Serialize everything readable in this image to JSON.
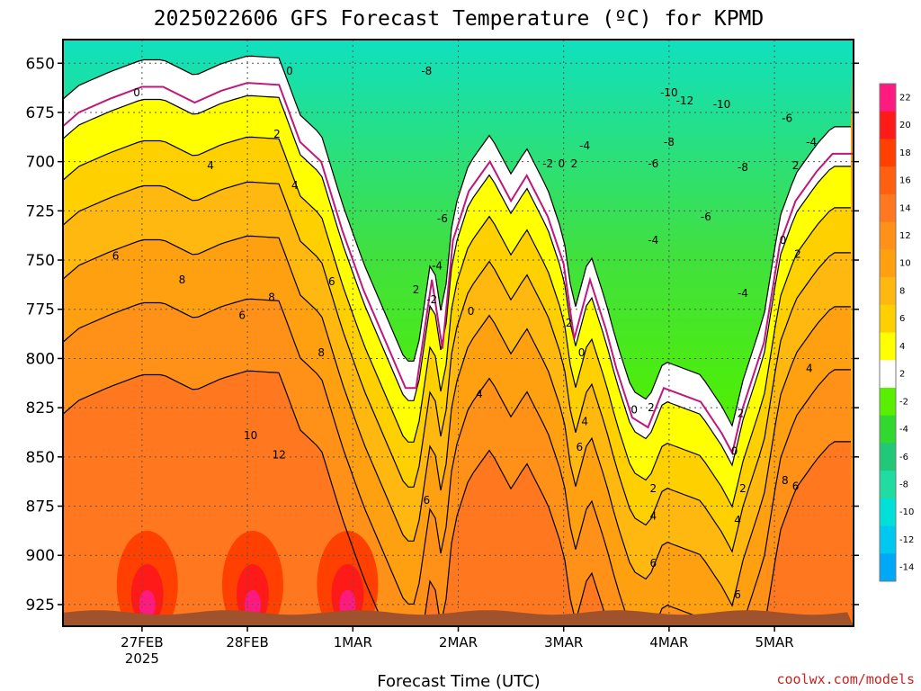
{
  "chart_data": {
    "type": "heatmap",
    "title": "2025022606 GFS Forecast Temperature (ºC) for KPMD",
    "xlabel": "Forecast Time (UTC)",
    "ylabel": "",
    "credit": "coolwx.com/models",
    "y_ticks": [
      "650",
      "675",
      "700",
      "725",
      "750",
      "775",
      "800",
      "825",
      "850",
      "875",
      "900",
      "925"
    ],
    "y_values": [
      650,
      675,
      700,
      725,
      750,
      775,
      800,
      825,
      850,
      875,
      900,
      925
    ],
    "ylim": [
      638,
      936
    ],
    "x_ticks": [
      {
        "label": "27FEB",
        "sub": "2025",
        "day": 1
      },
      {
        "label": "28FEB",
        "sub": "",
        "day": 2
      },
      {
        "label": "1MAR",
        "sub": "",
        "day": 3
      },
      {
        "label": "2MAR",
        "sub": "",
        "day": 4
      },
      {
        "label": "3MAR",
        "sub": "",
        "day": 5
      },
      {
        "label": "4MAR",
        "sub": "",
        "day": 6
      },
      {
        "label": "5MAR",
        "sub": "",
        "day": 7
      }
    ],
    "xlim": [
      0.25,
      7.75
    ],
    "colorbar": {
      "labels": [
        "22",
        "20",
        "18",
        "16",
        "14",
        "12",
        "10",
        "8",
        "6",
        "4",
        "2",
        "-2",
        "-4",
        "-6",
        "-8",
        "-10",
        "-12",
        "-14"
      ],
      "colors": [
        "#ff1a80",
        "#ff1a1a",
        "#ff4000",
        "#ff6010",
        "#ff7820",
        "#ff9018",
        "#ffa010",
        "#ffb810",
        "#ffd000",
        "#ffff00",
        "#ffffff",
        "#58f000",
        "#30d830",
        "#20c878",
        "#20dca0",
        "#00e0d8",
        "#00c8f0",
        "#00a8f8"
      ]
    },
    "freezing_line": [
      [
        0.25,
        682
      ],
      [
        0.4,
        675
      ],
      [
        0.7,
        668
      ],
      [
        1.0,
        662
      ],
      [
        1.2,
        662
      ],
      [
        1.5,
        670
      ],
      [
        1.75,
        664
      ],
      [
        2.0,
        660
      ],
      [
        2.3,
        661
      ],
      [
        2.5,
        690
      ],
      [
        2.7,
        700
      ],
      [
        2.9,
        735
      ],
      [
        3.1,
        765
      ],
      [
        3.3,
        790
      ],
      [
        3.5,
        815
      ],
      [
        3.6,
        815
      ],
      [
        3.75,
        760
      ],
      [
        3.85,
        795
      ],
      [
        3.95,
        740
      ],
      [
        4.1,
        715
      ],
      [
        4.3,
        700
      ],
      [
        4.5,
        720
      ],
      [
        4.65,
        707
      ],
      [
        4.85,
        728
      ],
      [
        5.0,
        752
      ],
      [
        5.1,
        790
      ],
      [
        5.25,
        760
      ],
      [
        5.4,
        785
      ],
      [
        5.5,
        805
      ],
      [
        5.65,
        830
      ],
      [
        5.8,
        835
      ],
      [
        5.95,
        815
      ],
      [
        6.1,
        818
      ],
      [
        6.3,
        822
      ],
      [
        6.5,
        838
      ],
      [
        6.6,
        848
      ],
      [
        6.7,
        825
      ],
      [
        6.9,
        792
      ],
      [
        7.05,
        742
      ],
      [
        7.2,
        720
      ],
      [
        7.4,
        705
      ],
      [
        7.55,
        696
      ],
      [
        7.75,
        696
      ]
    ],
    "contour_labels": [
      {
        "t": "0",
        "x": 0.95,
        "y": 665
      },
      {
        "t": "0",
        "x": 2.4,
        "y": 654
      },
      {
        "t": "0",
        "x": 4.12,
        "y": 776
      },
      {
        "t": "0",
        "x": 4.98,
        "y": 701
      },
      {
        "t": "0",
        "x": 5.17,
        "y": 797
      },
      {
        "t": "0",
        "x": 5.67,
        "y": 826
      },
      {
        "t": "0",
        "x": 6.62,
        "y": 847
      },
      {
        "t": "0",
        "x": 7.08,
        "y": 740
      },
      {
        "t": "2",
        "x": 2.28,
        "y": 686
      },
      {
        "t": "2",
        "x": 3.6,
        "y": 765
      },
      {
        "t": "2",
        "x": 5.1,
        "y": 701
      },
      {
        "t": "2",
        "x": 5.05,
        "y": 782
      },
      {
        "t": "2",
        "x": 5.83,
        "y": 825
      },
      {
        "t": "2",
        "x": 6.68,
        "y": 828
      },
      {
        "t": "2",
        "x": 5.85,
        "y": 866
      },
      {
        "t": "2",
        "x": 6.7,
        "y": 866
      },
      {
        "t": "2",
        "x": 7.2,
        "y": 702
      },
      {
        "t": "2",
        "x": 7.22,
        "y": 747
      },
      {
        "t": "4",
        "x": 1.65,
        "y": 702
      },
      {
        "t": "4",
        "x": 2.45,
        "y": 712
      },
      {
        "t": "4",
        "x": 4.2,
        "y": 818
      },
      {
        "t": "4",
        "x": 5.2,
        "y": 832
      },
      {
        "t": "4",
        "x": 5.85,
        "y": 880
      },
      {
        "t": "4",
        "x": 6.65,
        "y": 882
      },
      {
        "t": "4",
        "x": 7.33,
        "y": 805
      },
      {
        "t": "6",
        "x": 0.75,
        "y": 748
      },
      {
        "t": "6",
        "x": 1.95,
        "y": 778
      },
      {
        "t": "6",
        "x": 2.8,
        "y": 761
      },
      {
        "t": "6",
        "x": 3.7,
        "y": 872
      },
      {
        "t": "6",
        "x": 5.15,
        "y": 845
      },
      {
        "t": "6",
        "x": 5.85,
        "y": 904
      },
      {
        "t": "6",
        "x": 6.65,
        "y": 920
      },
      {
        "t": "6",
        "x": 7.2,
        "y": 865
      },
      {
        "t": "8",
        "x": 1.38,
        "y": 760
      },
      {
        "t": "8",
        "x": 2.23,
        "y": 769
      },
      {
        "t": "8",
        "x": 2.7,
        "y": 797
      },
      {
        "t": "8",
        "x": 7.1,
        "y": 862
      },
      {
        "t": "10",
        "x": 2.03,
        "y": 839
      },
      {
        "t": "12",
        "x": 2.3,
        "y": 849
      },
      {
        "t": "-2",
        "x": 3.75,
        "y": 770
      },
      {
        "t": "-2",
        "x": 4.85,
        "y": 701
      },
      {
        "t": "-4",
        "x": 3.8,
        "y": 753
      },
      {
        "t": "-4",
        "x": 5.2,
        "y": 692
      },
      {
        "t": "-4",
        "x": 5.85,
        "y": 740
      },
      {
        "t": "-4",
        "x": 6.7,
        "y": 767
      },
      {
        "t": "-4",
        "x": 7.35,
        "y": 690
      },
      {
        "t": "-6",
        "x": 3.85,
        "y": 729
      },
      {
        "t": "-6",
        "x": 5.85,
        "y": 701
      },
      {
        "t": "-6",
        "x": 6.35,
        "y": 728
      },
      {
        "t": "-6",
        "x": 7.12,
        "y": 678
      },
      {
        "t": "-8",
        "x": 3.7,
        "y": 654
      },
      {
        "t": "-8",
        "x": 6.0,
        "y": 690
      },
      {
        "t": "-8",
        "x": 6.7,
        "y": 703
      },
      {
        "t": "-10",
        "x": 6.0,
        "y": 665
      },
      {
        "t": "-10",
        "x": 6.5,
        "y": 671
      },
      {
        "t": "-12",
        "x": 6.15,
        "y": 669
      }
    ]
  }
}
